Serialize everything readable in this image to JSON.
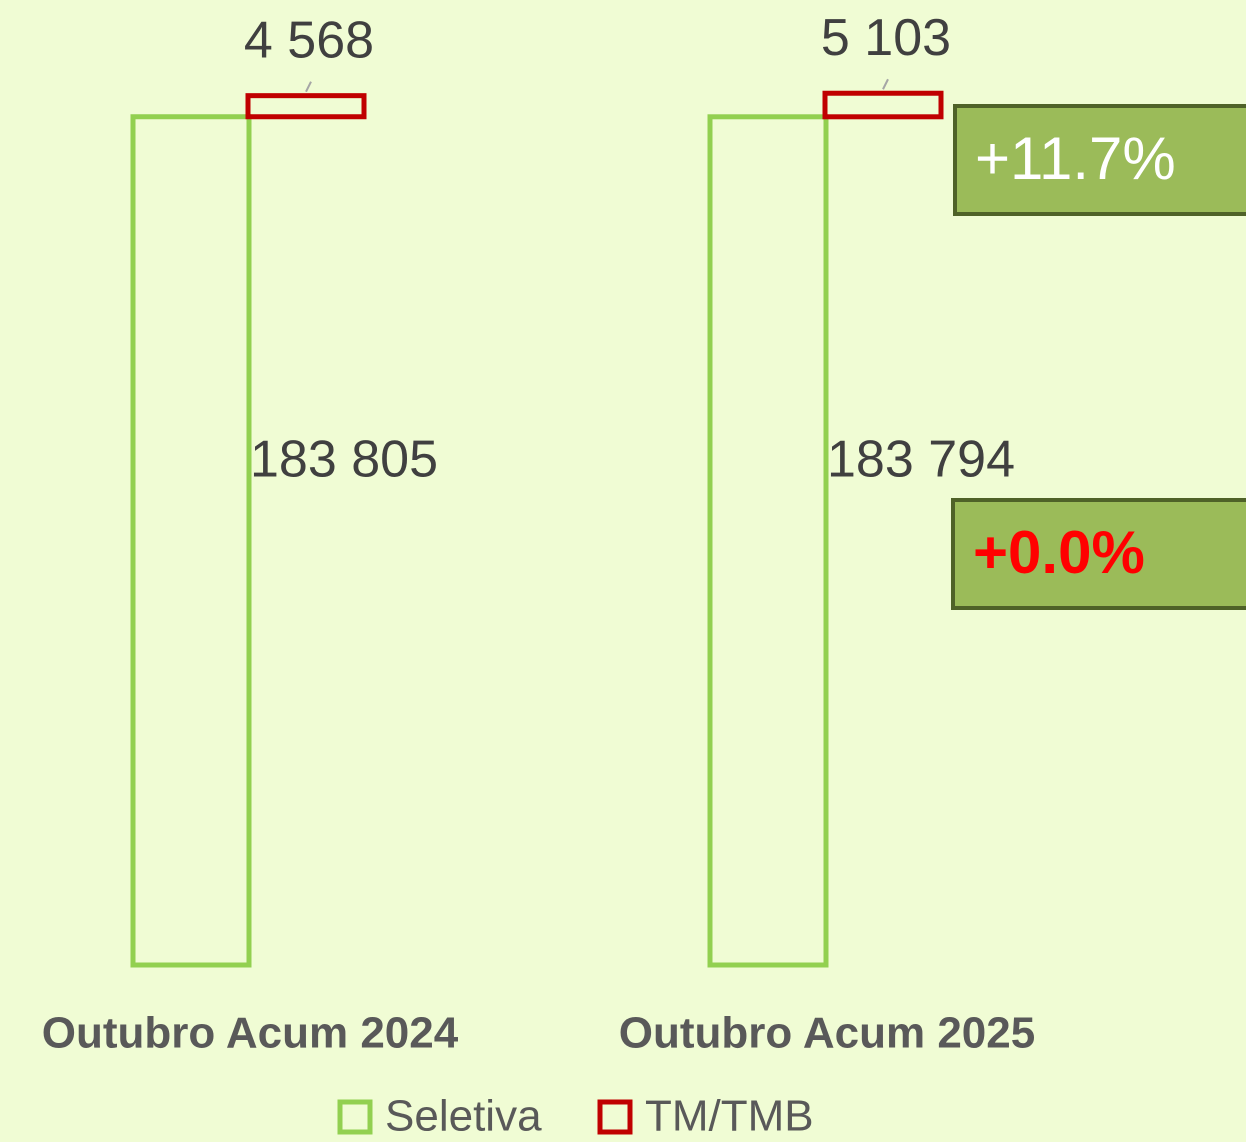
{
  "chart_data": {
    "type": "stacked_bar",
    "categories": [
      "Outubro Acum 2024",
      "Outubro Acum 2025"
    ],
    "series": [
      {
        "name": "Seletiva",
        "color": "#92d050",
        "values": [
          183805,
          183794
        ],
        "value_labels": [
          "183 805",
          "183 794"
        ]
      },
      {
        "name": "TM/TMB",
        "color": "#c00000",
        "values": [
          4568,
          5103
        ],
        "value_labels": [
          "4 568",
          "5 103"
        ]
      }
    ],
    "ylim": [
      0,
      200000
    ],
    "legend": "bottom",
    "annotations": [
      "+11.7%",
      "+0.0%"
    ]
  }
}
